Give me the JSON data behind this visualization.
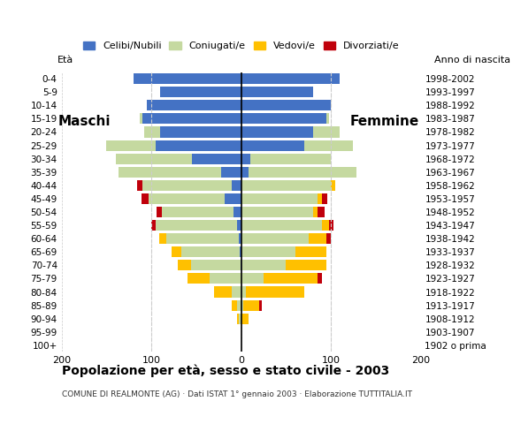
{
  "age_groups": [
    "100+",
    "95-99",
    "90-94",
    "85-89",
    "80-84",
    "75-79",
    "70-74",
    "65-69",
    "60-64",
    "55-59",
    "50-54",
    "45-49",
    "40-44",
    "35-39",
    "30-34",
    "25-29",
    "20-24",
    "15-19",
    "10-14",
    "5-9",
    "0-4"
  ],
  "birth_years": [
    "1902 o prima",
    "1903-1907",
    "1908-1912",
    "1913-1917",
    "1918-1922",
    "1923-1927",
    "1928-1932",
    "1933-1937",
    "1938-1942",
    "1943-1947",
    "1948-1952",
    "1953-1957",
    "1958-1962",
    "1963-1967",
    "1968-1972",
    "1973-1977",
    "1978-1982",
    "1983-1987",
    "1988-1992",
    "1993-1997",
    "1998-2002"
  ],
  "male_celibe": [
    0,
    0,
    0,
    0,
    0,
    0,
    1,
    2,
    3,
    5,
    8,
    18,
    10,
    22,
    55,
    95,
    90,
    110,
    105,
    90,
    120
  ],
  "male_coniugato": [
    0,
    0,
    3,
    5,
    10,
    35,
    55,
    65,
    80,
    90,
    80,
    85,
    100,
    115,
    85,
    55,
    18,
    3,
    0,
    0,
    0
  ],
  "male_vedovo": [
    0,
    0,
    2,
    5,
    20,
    25,
    15,
    10,
    8,
    0,
    0,
    0,
    0,
    0,
    0,
    0,
    0,
    0,
    0,
    0,
    0
  ],
  "male_divorziato": [
    0,
    0,
    0,
    0,
    0,
    0,
    0,
    0,
    0,
    5,
    6,
    8,
    6,
    0,
    0,
    0,
    0,
    0,
    0,
    0,
    0
  ],
  "female_celibe": [
    0,
    0,
    0,
    0,
    0,
    0,
    0,
    0,
    0,
    0,
    0,
    0,
    0,
    8,
    10,
    70,
    80,
    95,
    100,
    80,
    110
  ],
  "female_coniugato": [
    0,
    0,
    0,
    2,
    5,
    25,
    50,
    60,
    75,
    90,
    80,
    85,
    100,
    120,
    90,
    55,
    30,
    3,
    0,
    0,
    0
  ],
  "female_vedovo": [
    0,
    0,
    8,
    18,
    65,
    60,
    45,
    35,
    20,
    8,
    5,
    5,
    5,
    0,
    0,
    0,
    0,
    0,
    0,
    0,
    0
  ],
  "female_divorziato": [
    0,
    0,
    0,
    3,
    0,
    5,
    0,
    0,
    5,
    5,
    8,
    6,
    0,
    0,
    0,
    0,
    0,
    0,
    0,
    0,
    0
  ],
  "color_celibe": "#4472c4",
  "color_coniugato": "#c5d9a0",
  "color_vedovo": "#ffc000",
  "color_divorziato": "#c0000b",
  "xlim": 200,
  "title": "Popolazione per età, sesso e stato civile - 2003",
  "subtitle": "COMUNE DI REALMONTE (AG) · Dati ISTAT 1° gennaio 2003 · Elaborazione TUTTITALIA.IT",
  "label_eta": "Età",
  "label_maschi": "Maschi",
  "label_femmine": "Femmine",
  "label_anno": "Anno di nascita",
  "legend_labels": [
    "Celibi/Nubili",
    "Coniugati/e",
    "Vedovi/e",
    "Divorziati/e"
  ],
  "background_color": "#ffffff",
  "bar_height": 0.8
}
